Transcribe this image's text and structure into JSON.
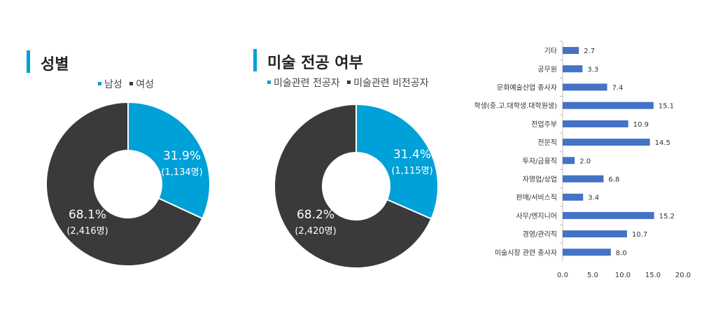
{
  "colors": {
    "accent": "#00a0d8",
    "dark": "#3a3a3a",
    "bar": "#4472c4"
  },
  "chart_data": [
    {
      "type": "pie",
      "title": "성별",
      "legend": [
        "남성",
        "여성"
      ],
      "slices": [
        {
          "name": "남성",
          "value": 31.9,
          "label": "31.9%",
          "count": "(1,134명)",
          "color": "#00a0d8"
        },
        {
          "name": "여성",
          "value": 68.1,
          "label": "68.1%",
          "count": "(2,416명)",
          "color": "#3a3a3a"
        }
      ]
    },
    {
      "type": "pie",
      "title": "미술 전공 여부",
      "legend": [
        "미술관련 전공자",
        "미술관련 비전공자"
      ],
      "slices": [
        {
          "name": "미술관련 전공자",
          "value": 31.4,
          "label": "31.4%",
          "count": "(1,115명)",
          "color": "#00a0d8"
        },
        {
          "name": "미술관련 비전공자",
          "value": 68.2,
          "label": "68.2%",
          "count": "(2,420명)",
          "color": "#3a3a3a"
        }
      ]
    },
    {
      "type": "bar",
      "orientation": "horizontal",
      "categories": [
        "기타",
        "공무원",
        "문화예술산업 종사자",
        "학생(중.고.대학생.대학원생)",
        "전업주부",
        "전문직",
        "투자/금융직",
        "자영업/상업",
        "판매/서비스직",
        "사무/엔지니어",
        "경영/관리직",
        "미술시장 관련 종사자"
      ],
      "values": [
        2.7,
        3.3,
        7.4,
        15.1,
        10.9,
        14.5,
        2.0,
        6.8,
        3.4,
        15.2,
        10.7,
        8.0
      ],
      "value_labels": [
        "2.7",
        "3.3",
        "7.4",
        "15.1",
        "10.9",
        "14.5",
        "2.0",
        "6.8",
        "3.4",
        "15.2",
        "10.7",
        "8.0"
      ],
      "xlim": [
        0,
        20
      ],
      "xticks": [
        "0.0",
        "5.0",
        "10.0",
        "15.0",
        "20.0"
      ],
      "grid": false
    }
  ]
}
